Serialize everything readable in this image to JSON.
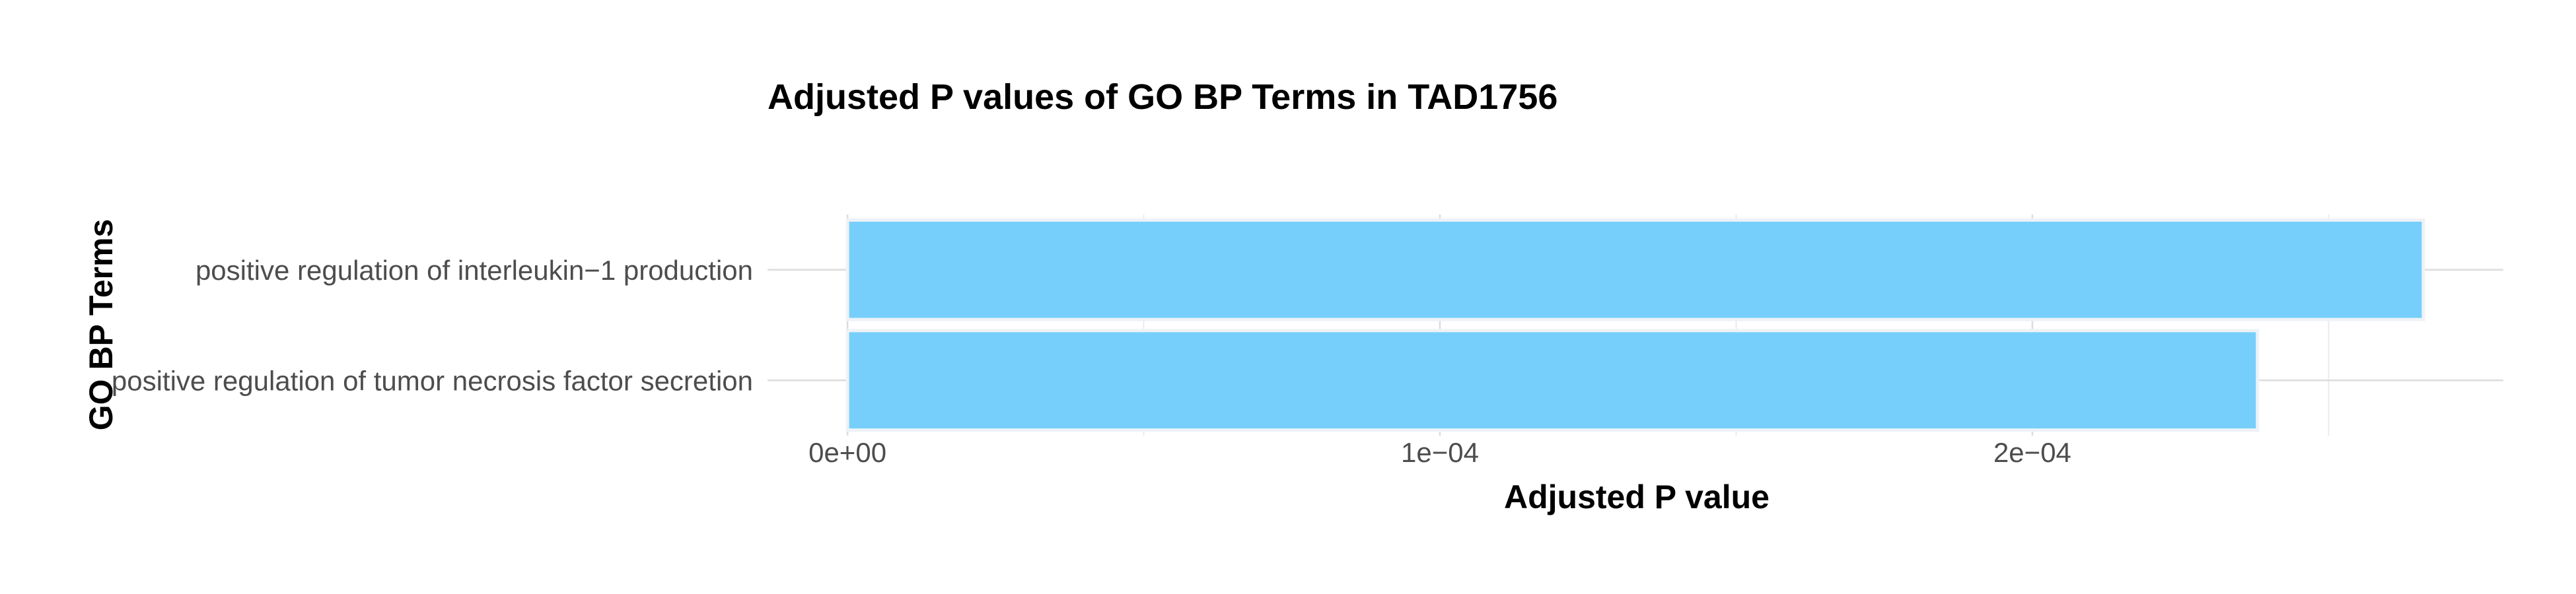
{
  "chart_data": {
    "type": "bar",
    "orientation": "horizontal",
    "title": "Adjusted P values of GO BP Terms in TAD1756",
    "xlabel": "Adjusted P value",
    "ylabel": "GO BP Terms",
    "categories": [
      "positive regulation of interleukin−1 production",
      "positive regulation of tumor necrosis factor secretion"
    ],
    "values": [
      0.000266,
      0.000238
    ],
    "xlim": [
      -1.35e-05,
      0.0002795
    ],
    "xticks": [
      0,
      0.0001,
      0.0002
    ],
    "xtick_labels": [
      "0e+00",
      "1e−04",
      "2e−04"
    ],
    "grid": true,
    "bar_color": "#76cffa",
    "bar_border_color": "#eef2f7"
  }
}
